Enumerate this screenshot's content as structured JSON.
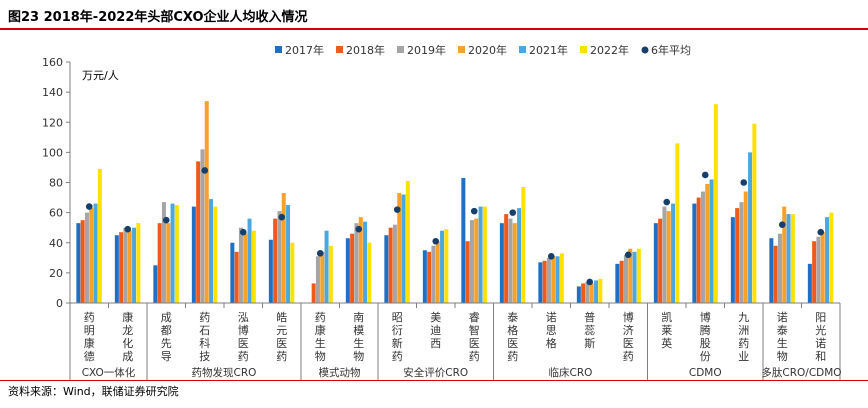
{
  "figure": {
    "title": "图23 2018年-2022年头部CXO企业人均收入情况",
    "source": "资料来源：Wind，联储证券研究院"
  },
  "chart_data": {
    "type": "bar",
    "ylabel": "万元/人",
    "ylim": [
      0,
      160
    ],
    "yticks": [
      0,
      20,
      40,
      60,
      80,
      100,
      120,
      140,
      160
    ],
    "grid": false,
    "legend_position": "top-center",
    "categories": [
      "药明康德",
      "康龙化成",
      "成都先导",
      "药石科技",
      "泓博医药",
      "皓元医药",
      "药康生物",
      "南模生物",
      "昭衍新药",
      "美迪西",
      "睿智医药",
      "泰格医药",
      "诺思格",
      "普蕊斯",
      "博济医药",
      "凯莱英",
      "博腾股份",
      "九洲药业",
      "诺泰生物",
      "阳光诺和"
    ],
    "groups": [
      {
        "label": "CXO一体化",
        "start": 0,
        "end": 1
      },
      {
        "label": "药物发现CRO",
        "start": 2,
        "end": 5
      },
      {
        "label": "模式动物",
        "start": 6,
        "end": 7
      },
      {
        "label": "安全评价CRO",
        "start": 8,
        "end": 10
      },
      {
        "label": "临床CRO",
        "start": 11,
        "end": 14
      },
      {
        "label": "CDMO",
        "start": 15,
        "end": 17
      },
      {
        "label": "多肽CRO/CDMO",
        "start": 18,
        "end": 19
      }
    ],
    "series": [
      {
        "name": "2017年",
        "color": "#1f6fc5",
        "values": [
          53,
          45,
          25,
          64,
          40,
          42,
          null,
          43,
          45,
          35,
          83,
          53,
          27,
          11,
          26,
          53,
          66,
          57,
          43,
          26
        ]
      },
      {
        "name": "2018年",
        "color": "#ed5a1b",
        "values": [
          55,
          47,
          53,
          94,
          34,
          56,
          13,
          46,
          50,
          34,
          41,
          59,
          28,
          13,
          28,
          56,
          70,
          63,
          38,
          41
        ]
      },
      {
        "name": "2019年",
        "color": "#a5a5a5",
        "values": [
          60,
          50,
          67,
          102,
          50,
          61,
          31,
          53,
          52,
          38,
          55,
          56,
          30,
          14,
          32,
          64,
          74,
          67,
          46,
          44
        ]
      },
      {
        "name": "2020年",
        "color": "#f7a128",
        "values": [
          63,
          48,
          53,
          134,
          46,
          73,
          34,
          57,
          73,
          41,
          56,
          53,
          31,
          13,
          36,
          61,
          79,
          74,
          64,
          47
        ]
      },
      {
        "name": "2021年",
        "color": "#4ba8df",
        "values": [
          66,
          50,
          66,
          69,
          56,
          65,
          48,
          54,
          72,
          48,
          64,
          63,
          31,
          15,
          34,
          66,
          82,
          100,
          59,
          57
        ]
      },
      {
        "name": "2022年",
        "color": "#fde200",
        "values": [
          89,
          53,
          65,
          64,
          48,
          40,
          38,
          40,
          81,
          49,
          64,
          77,
          33,
          16,
          36,
          106,
          132,
          119,
          59,
          60
        ]
      },
      {
        "name": "6年平均",
        "color": "#173f6c",
        "marker": "dot",
        "values": [
          64,
          49,
          55,
          88,
          47,
          57,
          33,
          49,
          62,
          41,
          61,
          60,
          31,
          14,
          32,
          67,
          85,
          80,
          52,
          47
        ]
      }
    ]
  }
}
